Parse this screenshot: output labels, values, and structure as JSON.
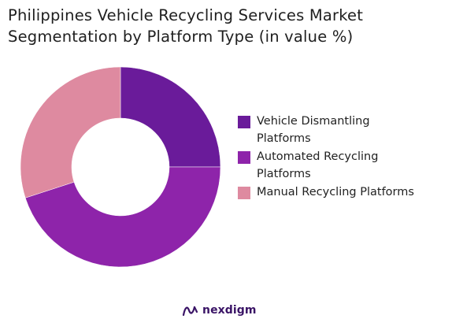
{
  "title_line1": "Philippines Vehicle Recycling Services Market",
  "title_line2": "Segmentation by Platform Type (in value %)",
  "chart_data": {
    "type": "pie",
    "donut": true,
    "title": "Philippines Vehicle Recycling Services Market Segmentation by Platform Type (in value %)",
    "start_angle_deg": 0,
    "direction": "clockwise",
    "categories": [
      "Vehicle Dismantling Platforms",
      "Automated Recycling Platforms",
      "Manual Recycling Platforms"
    ],
    "values": [
      25,
      45,
      30
    ],
    "colors": [
      "#6a1b9a",
      "#8e24aa",
      "#de8aa0"
    ],
    "legend_position": "right"
  },
  "legend": [
    {
      "line1": "Vehicle Dismantling",
      "line2": "Platforms"
    },
    {
      "line1": "Automated Recycling",
      "line2": "Platforms"
    },
    {
      "line1": "Manual Recycling Platforms",
      "line2": ""
    }
  ],
  "logo": {
    "text": "nexdigm",
    "icon": "nexdigm-logo-icon"
  }
}
